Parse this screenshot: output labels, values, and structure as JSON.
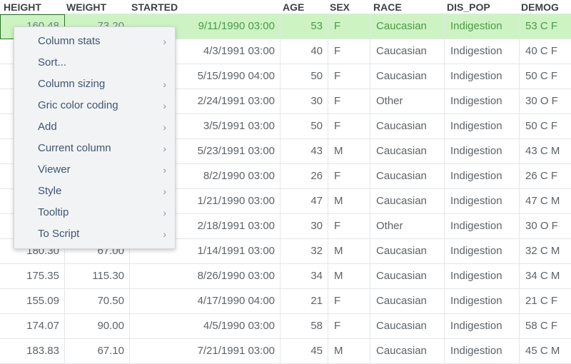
{
  "grid": {
    "columns": [
      "HEIGHT",
      "WEIGHT",
      "STARTED",
      "AGE",
      "SEX",
      "RACE",
      "DIS_POP",
      "DEMOG"
    ],
    "rows": [
      [
        "160.48",
        "73.20",
        "9/11/1990 03:00",
        "53",
        "F",
        "Caucasian",
        "Indigestion",
        "53 C F"
      ],
      [
        "",
        "",
        "4/3/1991 03:00",
        "40",
        "F",
        "Caucasian",
        "Indigestion",
        "40 C F"
      ],
      [
        "",
        "",
        "5/15/1990 04:00",
        "50",
        "F",
        "Caucasian",
        "Indigestion",
        "50 C F"
      ],
      [
        "",
        "",
        "2/24/1991 03:00",
        "30",
        "F",
        "Other",
        "Indigestion",
        "30 O F"
      ],
      [
        "",
        "",
        "3/5/1991 03:00",
        "50",
        "F",
        "Caucasian",
        "Indigestion",
        "50 C F"
      ],
      [
        "",
        "",
        "5/23/1991 03:00",
        "43",
        "M",
        "Caucasian",
        "Indigestion",
        "43 C M"
      ],
      [
        "",
        "",
        "8/2/1990 03:00",
        "26",
        "F",
        "Caucasian",
        "Indigestion",
        "26 C F"
      ],
      [
        "",
        "",
        "1/21/1990 03:00",
        "47",
        "M",
        "Caucasian",
        "Indigestion",
        "47 C M"
      ],
      [
        "",
        "",
        "2/18/1991 03:00",
        "30",
        "F",
        "Other",
        "Indigestion",
        "30 O F"
      ],
      [
        "180.30",
        "67.00",
        "1/14/1991 03:00",
        "32",
        "M",
        "Caucasian",
        "Indigestion",
        "32 C M"
      ],
      [
        "175.35",
        "115.30",
        "8/26/1990 03:00",
        "34",
        "M",
        "Caucasian",
        "Indigestion",
        "34 C M"
      ],
      [
        "155.09",
        "70.50",
        "4/17/1990 04:00",
        "21",
        "F",
        "Caucasian",
        "Indigestion",
        "21 C F"
      ],
      [
        "174.07",
        "90.00",
        "4/5/1990 03:00",
        "58",
        "F",
        "Caucasian",
        "Indigestion",
        "58 C F"
      ],
      [
        "183.83",
        "67.10",
        "7/21/1991 03:00",
        "45",
        "M",
        "Caucasian",
        "Indigestion",
        "45 C M"
      ]
    ],
    "current_row": 0,
    "current_row_color": "#cdf3c3"
  },
  "context_menu": {
    "items": [
      {
        "label": "Column stats",
        "submenu": true
      },
      {
        "label": "Sort...",
        "submenu": false
      },
      {
        "label": "Column sizing",
        "submenu": true
      },
      {
        "label": "Gric color coding",
        "submenu": true
      },
      {
        "label": "Add",
        "submenu": true
      },
      {
        "label": "Current column",
        "submenu": true
      },
      {
        "label": "Viewer",
        "submenu": true
      },
      {
        "label": "Style",
        "submenu": true
      },
      {
        "label": "Tooltip",
        "submenu": true
      },
      {
        "label": "To Script",
        "submenu": true
      }
    ],
    "submenu_indicator": "chevron-right-icon"
  }
}
